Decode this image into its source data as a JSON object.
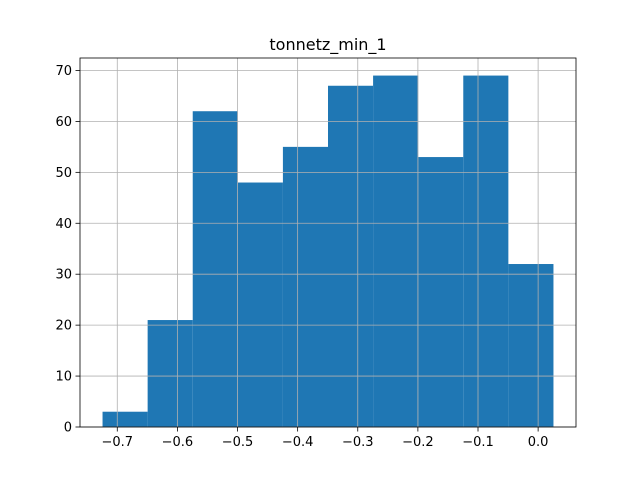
{
  "chart_data": {
    "type": "bar",
    "title": "tonnetz_min_1",
    "xlabel": "",
    "ylabel": "",
    "bin_edges": [
      -0.7245,
      -0.6495,
      -0.5745,
      -0.4995,
      -0.4245,
      -0.3495,
      -0.2745,
      -0.1995,
      -0.1245,
      -0.0495,
      0.0255
    ],
    "values": [
      3,
      21,
      62,
      48,
      55,
      67,
      69,
      53,
      69,
      32
    ],
    "xlim": [
      -0.762,
      0.063
    ],
    "ylim": [
      0,
      72.45
    ],
    "x_ticks": [
      -0.7,
      -0.6,
      -0.5,
      -0.4,
      -0.3,
      -0.2,
      -0.1,
      0.0
    ],
    "x_tick_labels": [
      "−0.7",
      "−0.6",
      "−0.5",
      "−0.4",
      "−0.3",
      "−0.2",
      "−0.1",
      "0.0"
    ],
    "y_ticks": [
      0,
      10,
      20,
      30,
      40,
      50,
      60,
      70
    ],
    "y_tick_labels": [
      "0",
      "10",
      "20",
      "30",
      "40",
      "50",
      "60",
      "70"
    ],
    "grid": true,
    "bar_color": "#1f77b4",
    "grid_color": "#b0b0b0"
  }
}
